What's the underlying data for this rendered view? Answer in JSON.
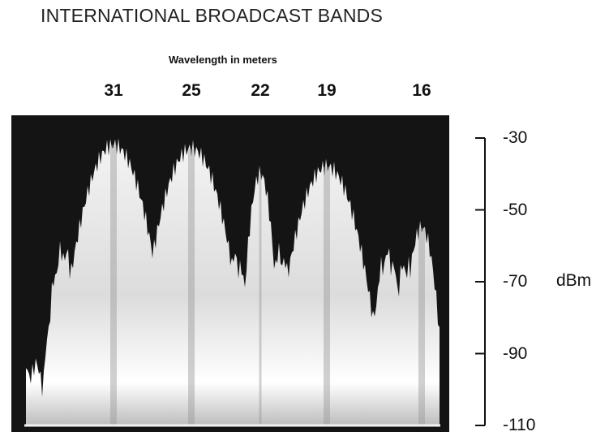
{
  "chart_data": {
    "type": "area",
    "title": "INTERNATIONAL BROADCAST BANDS",
    "subtitle": "Wavelength in meters",
    "ylabel": "dBm",
    "ylim": [
      -110,
      -30
    ],
    "yticks": [
      -30,
      -50,
      -70,
      -90,
      -110
    ],
    "yticklabels": [
      "-30",
      "-50",
      "-70",
      "-90",
      "-110"
    ],
    "bands": [
      {
        "label": "31",
        "peak": -32
      },
      {
        "label": "25",
        "peak": -33
      },
      {
        "label": "22",
        "peak": -40
      },
      {
        "label": "19",
        "peak": -38
      },
      {
        "label": "16",
        "peak": -55
      }
    ],
    "grid": false,
    "legend": "none"
  }
}
